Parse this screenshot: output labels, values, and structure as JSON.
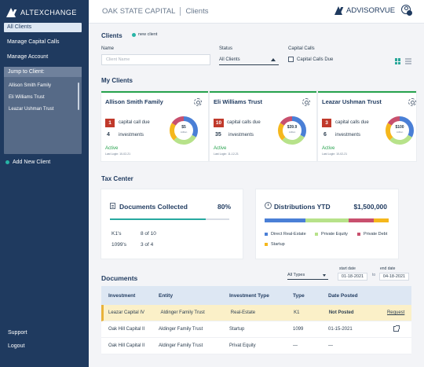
{
  "sidebar": {
    "logo_text": "ALTEXCHANGE",
    "nav": [
      "All Clients",
      "Manage Capital Calls",
      "Manage Account"
    ],
    "jump_title": "Jump to Client:",
    "jump_items": [
      "Allison Smith Family",
      "Eli Williams Trust",
      "Leazar Ushman Trust"
    ],
    "add_client": "Add New Client",
    "bottom": [
      "Support",
      "Logout"
    ]
  },
  "header": {
    "org": "OAK STATE CAPITAL",
    "page": "Clients",
    "brand": "ADVISORVUE"
  },
  "clients": {
    "title": "Clients",
    "new_client": "new client",
    "name_label": "Name",
    "name_placeholder": "Client Name",
    "status_label": "Status",
    "status_value": "All Clients",
    "calls_label": "Capital Calls",
    "calls_checkbox": "Capital Calls Due"
  },
  "my_clients": {
    "title": "My Clients",
    "cards": [
      {
        "name": "Allison Smith Family",
        "calls": "1",
        "calls_label": "capital call due",
        "investments": "4",
        "investments_label": "investments",
        "amount": "$5",
        "amount_unit": "million",
        "status": "Active",
        "last_login": "Last Login: 10-02-21"
      },
      {
        "name": "Eli Williams Trust",
        "calls": "10",
        "calls_label": "capital calls due",
        "investments": "35",
        "investments_label": "investments",
        "amount": "$39.9",
        "amount_unit": "million",
        "status": "Active",
        "last_login": "Last Login: 11-12-21"
      },
      {
        "name": "Leazar Ushman Trust",
        "calls": "3",
        "calls_label": "capital calls due",
        "investments": "6",
        "investments_label": "investments",
        "amount": "$100",
        "amount_unit": "million",
        "status": "Active",
        "last_login": "Last Login: 10-02-21"
      }
    ]
  },
  "tax_center": {
    "title": "Tax Center",
    "docs_title": "Documents Collected",
    "docs_pct": "80%",
    "docs_fraction": 0.8,
    "rows": [
      {
        "label": "K1's",
        "value": "8 of 10"
      },
      {
        "label": "1099's",
        "value": "3 of 4"
      }
    ],
    "dist_title": "Distributions YTD",
    "dist_amount": "$1,500,000",
    "dist_legend": [
      {
        "name": "Direct Real-Estate",
        "color": "#4a7fd6"
      },
      {
        "name": "Private Equity",
        "color": "#b7e28a"
      },
      {
        "name": "Private Debt",
        "color": "#c8506e"
      },
      {
        "name": "Startup",
        "color": "#f5b71c"
      }
    ],
    "dist_shares": [
      0.33,
      0.35,
      0.2,
      0.12
    ]
  },
  "documents": {
    "title": "Documents",
    "type_filter": "All Types",
    "start_label": "start date",
    "start_value": "01-18-2021",
    "to_label": "to",
    "end_label": "end date",
    "end_value": "04-18-2021",
    "columns": [
      "Investment",
      "Entity",
      "Investment Type",
      "Type",
      "Date Posted",
      ""
    ],
    "rows": [
      {
        "investment": "Leazar Capital IV",
        "entity": "Aldinger Family Trust",
        "inv_type": "Real-Estate",
        "type": "K1",
        "date": "Not Posted",
        "action": "Request"
      },
      {
        "investment": "Oak Hill Capital II",
        "entity": "Aldinger Family Trust",
        "inv_type": "Startup",
        "type": "1099",
        "date": "01-15-2021",
        "action": ""
      },
      {
        "investment": "Oak Hill Capital II",
        "entity": "Aldinger Family Trust",
        "inv_type": "Privat Equity",
        "type": "—",
        "date": "—",
        "action": ""
      }
    ]
  },
  "colors": {
    "sidebar": "#1f3a5f",
    "accent": "#27a9a0",
    "active_green": "#27a24d",
    "alert_red": "#c0392b"
  }
}
